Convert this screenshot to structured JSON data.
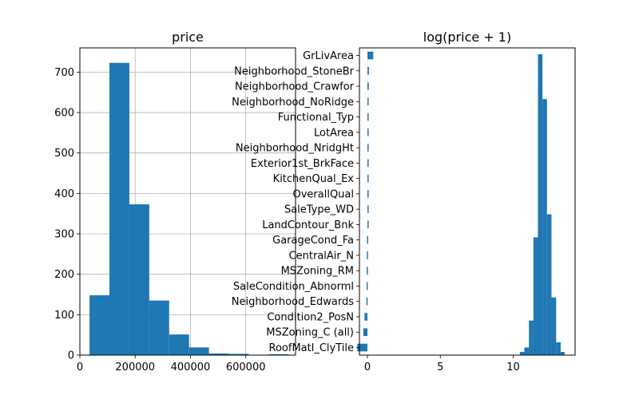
{
  "chart_data": [
    {
      "type": "bar",
      "title": "price",
      "xlabel": "",
      "ylabel": "",
      "grid": true,
      "xlim": [
        0,
        780000
      ],
      "ylim": [
        0,
        760
      ],
      "xticks": [
        0,
        200000,
        400000,
        600000
      ],
      "yticks": [
        0,
        100,
        200,
        300,
        400,
        500,
        600,
        700
      ],
      "bins": [
        {
          "x0": 34900,
          "x1": 106910,
          "count": 148
        },
        {
          "x0": 106910,
          "x1": 178920,
          "count": 723
        },
        {
          "x0": 178920,
          "x1": 250930,
          "count": 373
        },
        {
          "x0": 250930,
          "x1": 322940,
          "count": 135
        },
        {
          "x0": 322940,
          "x1": 394950,
          "count": 51
        },
        {
          "x0": 394950,
          "x1": 466960,
          "count": 19
        },
        {
          "x0": 466960,
          "x1": 538970,
          "count": 4
        },
        {
          "x0": 538970,
          "x1": 610980,
          "count": 3
        },
        {
          "x0": 610980,
          "x1": 682990,
          "count": 0
        },
        {
          "x0": 682990,
          "x1": 755000,
          "count": 2
        }
      ],
      "color": "#1f77b4",
      "grid_color": "#b0b0b0"
    },
    {
      "type": "bar",
      "title": "log(price + 1)",
      "xlabel": "",
      "ylabel": "",
      "grid": false,
      "xlim": [
        -0.55,
        14.25
      ],
      "xticks": [
        0,
        5,
        10
      ],
      "categories": [
        "GrLivArea",
        "Neighborhood_StoneBr",
        "Neighborhood_Crawfor",
        "Neighborhood_NoRidge",
        "Functional_Typ",
        "LotArea",
        "Neighborhood_NridgHt",
        "Exterior1st_BrkFace",
        "KitchenQual_Ex",
        "OverallQual",
        "SaleType_WD",
        "LandContour_Bnk",
        "GarageCond_Fa",
        "CentralAir_N",
        "MSZoning_RM",
        "SaleCondition_Abnorml",
        "Neighborhood_Edwards",
        "Condition2_PosN",
        "MSZoning_C (all)",
        "RoofMatl_ClyTile"
      ],
      "values": [
        0.4,
        0.1,
        0.09,
        0.06,
        0.05,
        0.05,
        0.05,
        0.04,
        0.04,
        0.04,
        0.03,
        0.03,
        -0.03,
        -0.04,
        -0.05,
        -0.06,
        -0.07,
        -0.2,
        -0.28,
        -0.7
      ],
      "hist_overlay": {
        "bins": [
          {
            "x0": 10.46,
            "x1": 10.77,
            "count": 5
          },
          {
            "x0": 10.77,
            "x1": 11.08,
            "count": 12
          },
          {
            "x0": 11.08,
            "x1": 11.39,
            "count": 54
          },
          {
            "x0": 11.39,
            "x1": 11.7,
            "count": 184
          },
          {
            "x0": 11.7,
            "x1": 12.01,
            "count": 470
          },
          {
            "x0": 12.01,
            "x1": 12.32,
            "count": 400
          },
          {
            "x0": 12.32,
            "x1": 12.63,
            "count": 220
          },
          {
            "x0": 12.63,
            "x1": 12.95,
            "count": 90
          },
          {
            "x0": 12.95,
            "x1": 13.26,
            "count": 20
          },
          {
            "x0": 13.26,
            "x1": 13.53,
            "count": 5
          }
        ],
        "ylim": [
          0,
          480
        ]
      },
      "color": "#1f77b4"
    }
  ]
}
